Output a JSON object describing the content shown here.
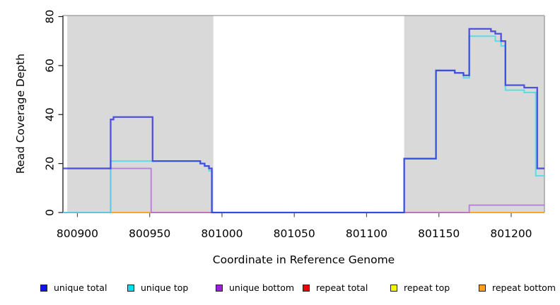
{
  "chart_data": {
    "type": "line",
    "subtype": "step-coverage-plot",
    "title": "",
    "xlabel": "Coordinate in Reference Genome",
    "ylabel": "Read Coverage Depth",
    "xlim": [
      800890,
      801223
    ],
    "ylim": [
      0,
      80
    ],
    "x_ticks": [
      800900,
      800950,
      801000,
      801050,
      801100,
      801150,
      801200
    ],
    "y_ticks": [
      0,
      20,
      40,
      60,
      80
    ],
    "grid": false,
    "legend_position": "bottom",
    "plot_border_color": "#999999",
    "axis_color": "#1a1a1a",
    "tick_color": "#555555",
    "shaded_regions": [
      {
        "x0": 800893,
        "x1": 800994,
        "color": "#d9d9d9"
      },
      {
        "x0": 801126,
        "x1": 801223,
        "color": "#d9d9d9"
      }
    ],
    "series": [
      {
        "name": "unique total",
        "color": "#2d2de0",
        "legend_color": "#1414e6",
        "width": 2.3,
        "opacity": 0.8,
        "steps": [
          [
            800890,
            18
          ],
          [
            800923,
            38
          ],
          [
            800925,
            39
          ],
          [
            800952,
            21
          ],
          [
            800985,
            20
          ],
          [
            800988,
            19
          ],
          [
            800991,
            18
          ],
          [
            800993,
            0
          ],
          [
            801126,
            22
          ],
          [
            801148,
            58
          ],
          [
            801161,
            57
          ],
          [
            801167,
            56
          ],
          [
            801171,
            75
          ],
          [
            801186,
            74
          ],
          [
            801189,
            73
          ],
          [
            801193,
            70
          ],
          [
            801196,
            52
          ],
          [
            801209,
            51
          ],
          [
            801218,
            18
          ]
        ]
      },
      {
        "name": "unique top",
        "color": "#3fdce8",
        "legend_color": "#00e1e8",
        "width": 2.0,
        "opacity": 0.8,
        "steps": [
          [
            800890,
            0
          ],
          [
            800923,
            21
          ],
          [
            800985,
            20
          ],
          [
            800988,
            19
          ],
          [
            800991,
            17
          ],
          [
            800993,
            0
          ],
          [
            801126,
            22
          ],
          [
            801148,
            58
          ],
          [
            801161,
            57
          ],
          [
            801167,
            55
          ],
          [
            801171,
            72
          ],
          [
            801189,
            70
          ],
          [
            801193,
            68
          ],
          [
            801196,
            50
          ],
          [
            801209,
            49
          ],
          [
            801217,
            15
          ]
        ]
      },
      {
        "name": "unique bottom",
        "color": "#b266dd",
        "legend_color": "#9b1fe8",
        "width": 1.9,
        "opacity": 0.8,
        "steps": [
          [
            800890,
            0
          ],
          [
            800923,
            18
          ],
          [
            800951,
            0
          ],
          [
            801171,
            3
          ]
        ]
      },
      {
        "name": "repeat total",
        "color": "#e64949",
        "legend_color": "#ee0000",
        "width": 1.7,
        "opacity": 0.8,
        "steps": [
          [
            800890,
            0
          ]
        ]
      },
      {
        "name": "repeat top",
        "color": "#f2f200",
        "legend_color": "#f5f500",
        "width": 1.7,
        "opacity": 0.8,
        "steps": [
          [
            800890,
            0
          ]
        ]
      },
      {
        "name": "repeat bottom",
        "color": "#ff9d26",
        "legend_color": "#ff9d26",
        "width": 1.9,
        "opacity": 0.8,
        "steps": [
          [
            800890,
            0
          ]
        ]
      }
    ],
    "draw_order": [
      3,
      4,
      5,
      2,
      1,
      0
    ]
  }
}
